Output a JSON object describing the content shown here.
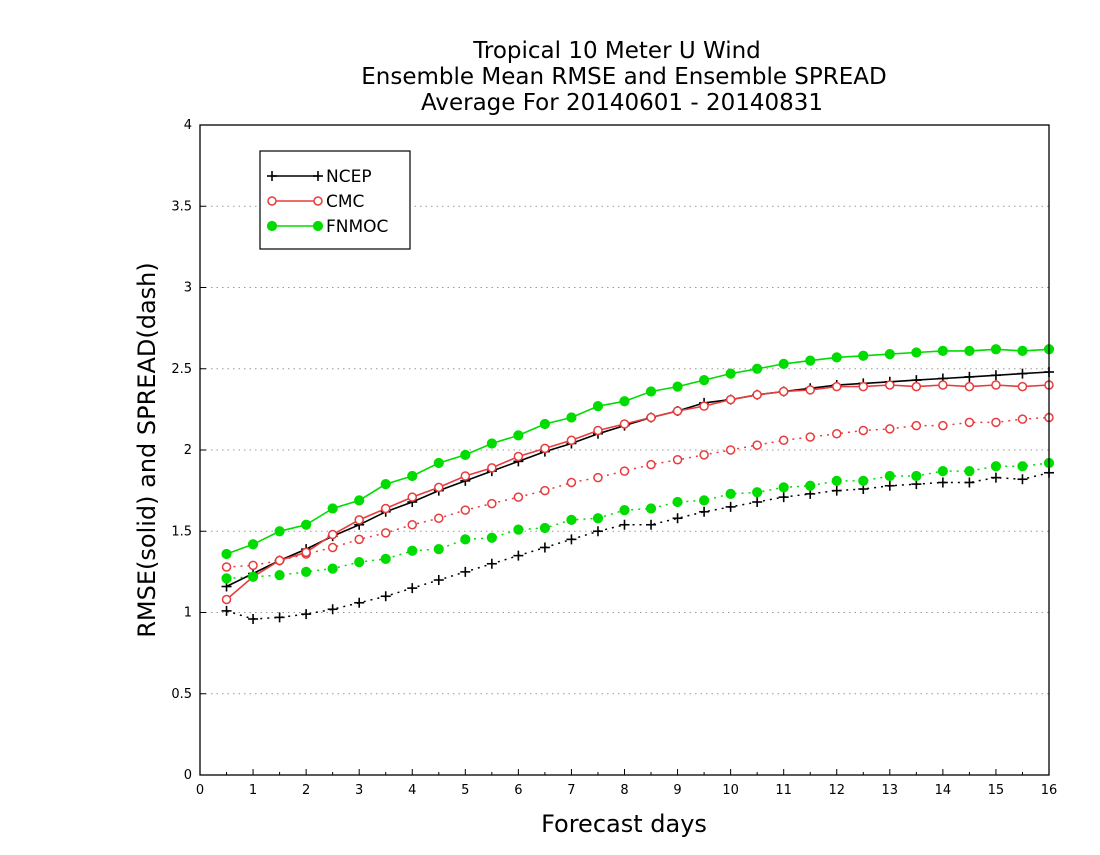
{
  "chart_data": {
    "type": "line",
    "title": [
      "Tropical 10 Meter U Wind",
      "Ensemble Mean RMSE and Ensemble SPREAD",
      "Average For 20140601 - 20140831"
    ],
    "xlabel": "Forecast days",
    "ylabel": "RMSE(solid) and SPREAD(dash)",
    "xlim": [
      0,
      16
    ],
    "ylim": [
      0,
      4
    ],
    "xticks": [
      "0",
      "1",
      "2",
      "3",
      "4",
      "5",
      "6",
      "7",
      "8",
      "9",
      "10",
      "11",
      "12",
      "13",
      "14",
      "15",
      "16"
    ],
    "yticks": [
      "0",
      "0.5",
      "1",
      "1.5",
      "2",
      "2.5",
      "3",
      "3.5",
      "4"
    ],
    "grid": "horizontal-dotted",
    "legend_position": "top-left",
    "x": [
      0.5,
      1,
      1.5,
      2,
      2.5,
      3,
      3.5,
      4,
      4.5,
      5,
      5.5,
      6,
      6.5,
      7,
      7.5,
      8,
      8.5,
      9,
      9.5,
      10,
      10.5,
      11,
      11.5,
      12,
      12.5,
      13,
      13.5,
      14,
      14.5,
      15,
      15.5,
      16
    ],
    "series": [
      {
        "name": "NCEP",
        "color": "#000000",
        "marker": "plus",
        "rmse": [
          1.16,
          1.24,
          1.32,
          1.39,
          1.47,
          1.54,
          1.62,
          1.68,
          1.75,
          1.81,
          1.87,
          1.93,
          1.99,
          2.04,
          2.1,
          2.15,
          2.2,
          2.24,
          2.29,
          2.31,
          2.34,
          2.36,
          2.38,
          2.4,
          2.41,
          2.42,
          2.43,
          2.44,
          2.45,
          2.46,
          2.47,
          2.48
        ],
        "spread": [
          1.01,
          0.96,
          0.97,
          0.99,
          1.02,
          1.06,
          1.1,
          1.15,
          1.2,
          1.25,
          1.3,
          1.35,
          1.4,
          1.45,
          1.5,
          1.54,
          1.54,
          1.58,
          1.62,
          1.65,
          1.68,
          1.71,
          1.73,
          1.75,
          1.76,
          1.78,
          1.79,
          1.8,
          1.8,
          1.83,
          1.82,
          1.86
        ]
      },
      {
        "name": "CMC",
        "color": "#e83c3c",
        "marker": "open-circle",
        "rmse": [
          1.08,
          1.22,
          1.32,
          1.37,
          1.48,
          1.57,
          1.64,
          1.71,
          1.77,
          1.84,
          1.89,
          1.96,
          2.01,
          2.06,
          2.12,
          2.16,
          2.2,
          2.24,
          2.27,
          2.31,
          2.34,
          2.36,
          2.37,
          2.39,
          2.39,
          2.4,
          2.39,
          2.4,
          2.39,
          2.4,
          2.39,
          2.4
        ],
        "spread": [
          1.28,
          1.29,
          1.32,
          1.36,
          1.4,
          1.45,
          1.49,
          1.54,
          1.58,
          1.63,
          1.67,
          1.71,
          1.75,
          1.8,
          1.83,
          1.87,
          1.91,
          1.94,
          1.97,
          2.0,
          2.03,
          2.06,
          2.08,
          2.1,
          2.12,
          2.13,
          2.15,
          2.15,
          2.17,
          2.17,
          2.19,
          2.2
        ]
      },
      {
        "name": "FNMOC",
        "color": "#00dc00",
        "marker": "filled-circle",
        "rmse": [
          1.36,
          1.42,
          1.5,
          1.54,
          1.64,
          1.69,
          1.79,
          1.84,
          1.92,
          1.97,
          2.04,
          2.09,
          2.16,
          2.2,
          2.27,
          2.3,
          2.36,
          2.39,
          2.43,
          2.47,
          2.5,
          2.53,
          2.55,
          2.57,
          2.58,
          2.59,
          2.6,
          2.61,
          2.61,
          2.62,
          2.61,
          2.62
        ],
        "spread": [
          1.21,
          1.22,
          1.23,
          1.25,
          1.27,
          1.31,
          1.33,
          1.38,
          1.39,
          1.45,
          1.46,
          1.51,
          1.52,
          1.57,
          1.58,
          1.63,
          1.64,
          1.68,
          1.69,
          1.73,
          1.74,
          1.77,
          1.78,
          1.81,
          1.81,
          1.84,
          1.84,
          1.87,
          1.87,
          1.9,
          1.9,
          1.92
        ]
      }
    ]
  }
}
